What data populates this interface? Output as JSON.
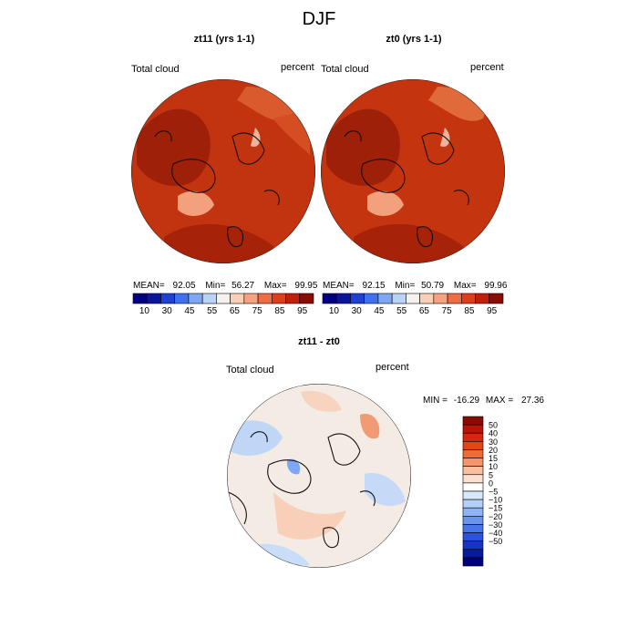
{
  "figure": {
    "season": "DJF"
  },
  "colors": {
    "seq_scale": [
      "#00007e",
      "#0a149e",
      "#1e3fd8",
      "#3f6ff2",
      "#7ea7f5",
      "#bcd3f8",
      "#f5f1ec",
      "#f9cfb6",
      "#f6a27f",
      "#ef6c44",
      "#e33b1b",
      "#c41d0a",
      "#8c0a04"
    ],
    "diff_scale": [
      "#8c0a04",
      "#b81407",
      "#d6260d",
      "#e84318",
      "#f06a34",
      "#f4966a",
      "#f8c0a0",
      "#fbe0cf",
      "#ffffff",
      "#d9e7fb",
      "#b4d0f8",
      "#8eb4f4",
      "#6a95ef",
      "#4876ea",
      "#2a52de",
      "#1634c2",
      "#061a9c",
      "#000078"
    ],
    "map_fill": "#c4330f",
    "diff_fill": "#f3e8e0"
  },
  "chart_data": [
    {
      "type": "map",
      "title": "zt11 (yrs 1-1)",
      "variable": "Total cloud",
      "units": "percent",
      "stats": {
        "mean_label": "MEAN=",
        "mean": "92.05",
        "min_label": "Min=",
        "min": "56.27",
        "max_label": "Max=",
        "max": "99.95"
      },
      "colorbar": {
        "labels": [
          "10",
          "30",
          "45",
          "55",
          "65",
          "75",
          "85",
          "95"
        ]
      }
    },
    {
      "type": "map",
      "title": "zt0 (yrs 1-1)",
      "variable": "Total cloud",
      "units": "percent",
      "stats": {
        "mean_label": "MEAN=",
        "mean": "92.15",
        "min_label": "Min=",
        "min": "50.79",
        "max_label": "Max=",
        "max": "99.96"
      },
      "colorbar": {
        "labels": [
          "10",
          "30",
          "45",
          "55",
          "65",
          "75",
          "85",
          "95"
        ]
      }
    },
    {
      "type": "map",
      "title": "zt11 - zt0",
      "variable": "Total cloud",
      "units": "percent",
      "stats": {
        "min_label": "MIN =",
        "min": "-16.29",
        "max_label": "MAX =",
        "max": "27.36"
      },
      "colorbar": {
        "labels": [
          "50",
          "40",
          "30",
          "20",
          "15",
          "10",
          "5",
          "0",
          "−5",
          "−10",
          "−15",
          "−20",
          "−30",
          "−40",
          "−50"
        ]
      }
    }
  ]
}
